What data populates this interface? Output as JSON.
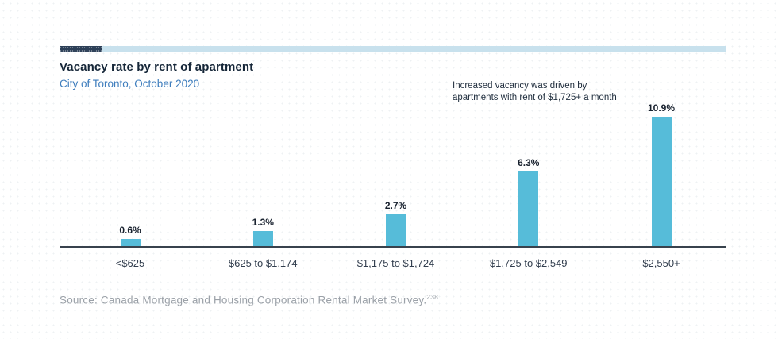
{
  "header": {
    "title": "Vacancy rate by rent of apartment",
    "subtitle": "City of Toronto, October 2020"
  },
  "annotation": {
    "lines": [
      "Increased vacancy was driven by",
      "apartments with rent of $1,725+ a month"
    ]
  },
  "footer": {
    "source": "Source: Canada Mortgage and Housing Corporation Rental Market Survey.",
    "footnote": "238"
  },
  "colors": {
    "bar": "#56bcd9",
    "topbar_dark": "#2c3f57",
    "topbar_light": "#c8e1ed",
    "title": "#152638",
    "subtitle": "#3e7dbd",
    "axis": "#38424d",
    "source_text": "#9ba1a8"
  },
  "chart_data": {
    "type": "bar",
    "title": "Vacancy rate by rent of apartment",
    "subtitle": "City of Toronto, October 2020",
    "categories": [
      "<$625",
      "$625 to $1,174",
      "$1,175 to $1,724",
      "$1,725 to $2,549",
      "$2,550+"
    ],
    "values": [
      0.6,
      1.3,
      2.7,
      6.3,
      10.9
    ],
    "value_labels": [
      "0.6%",
      "1.3%",
      "2.7%",
      "6.3%",
      "10.9%"
    ],
    "unit": "%",
    "xlabel": "",
    "ylabel": "",
    "ylim": [
      0,
      11.5
    ],
    "grid": false,
    "legend": false,
    "annotation": "Increased vacancy was driven by apartments with rent of $1,725+ a month"
  }
}
